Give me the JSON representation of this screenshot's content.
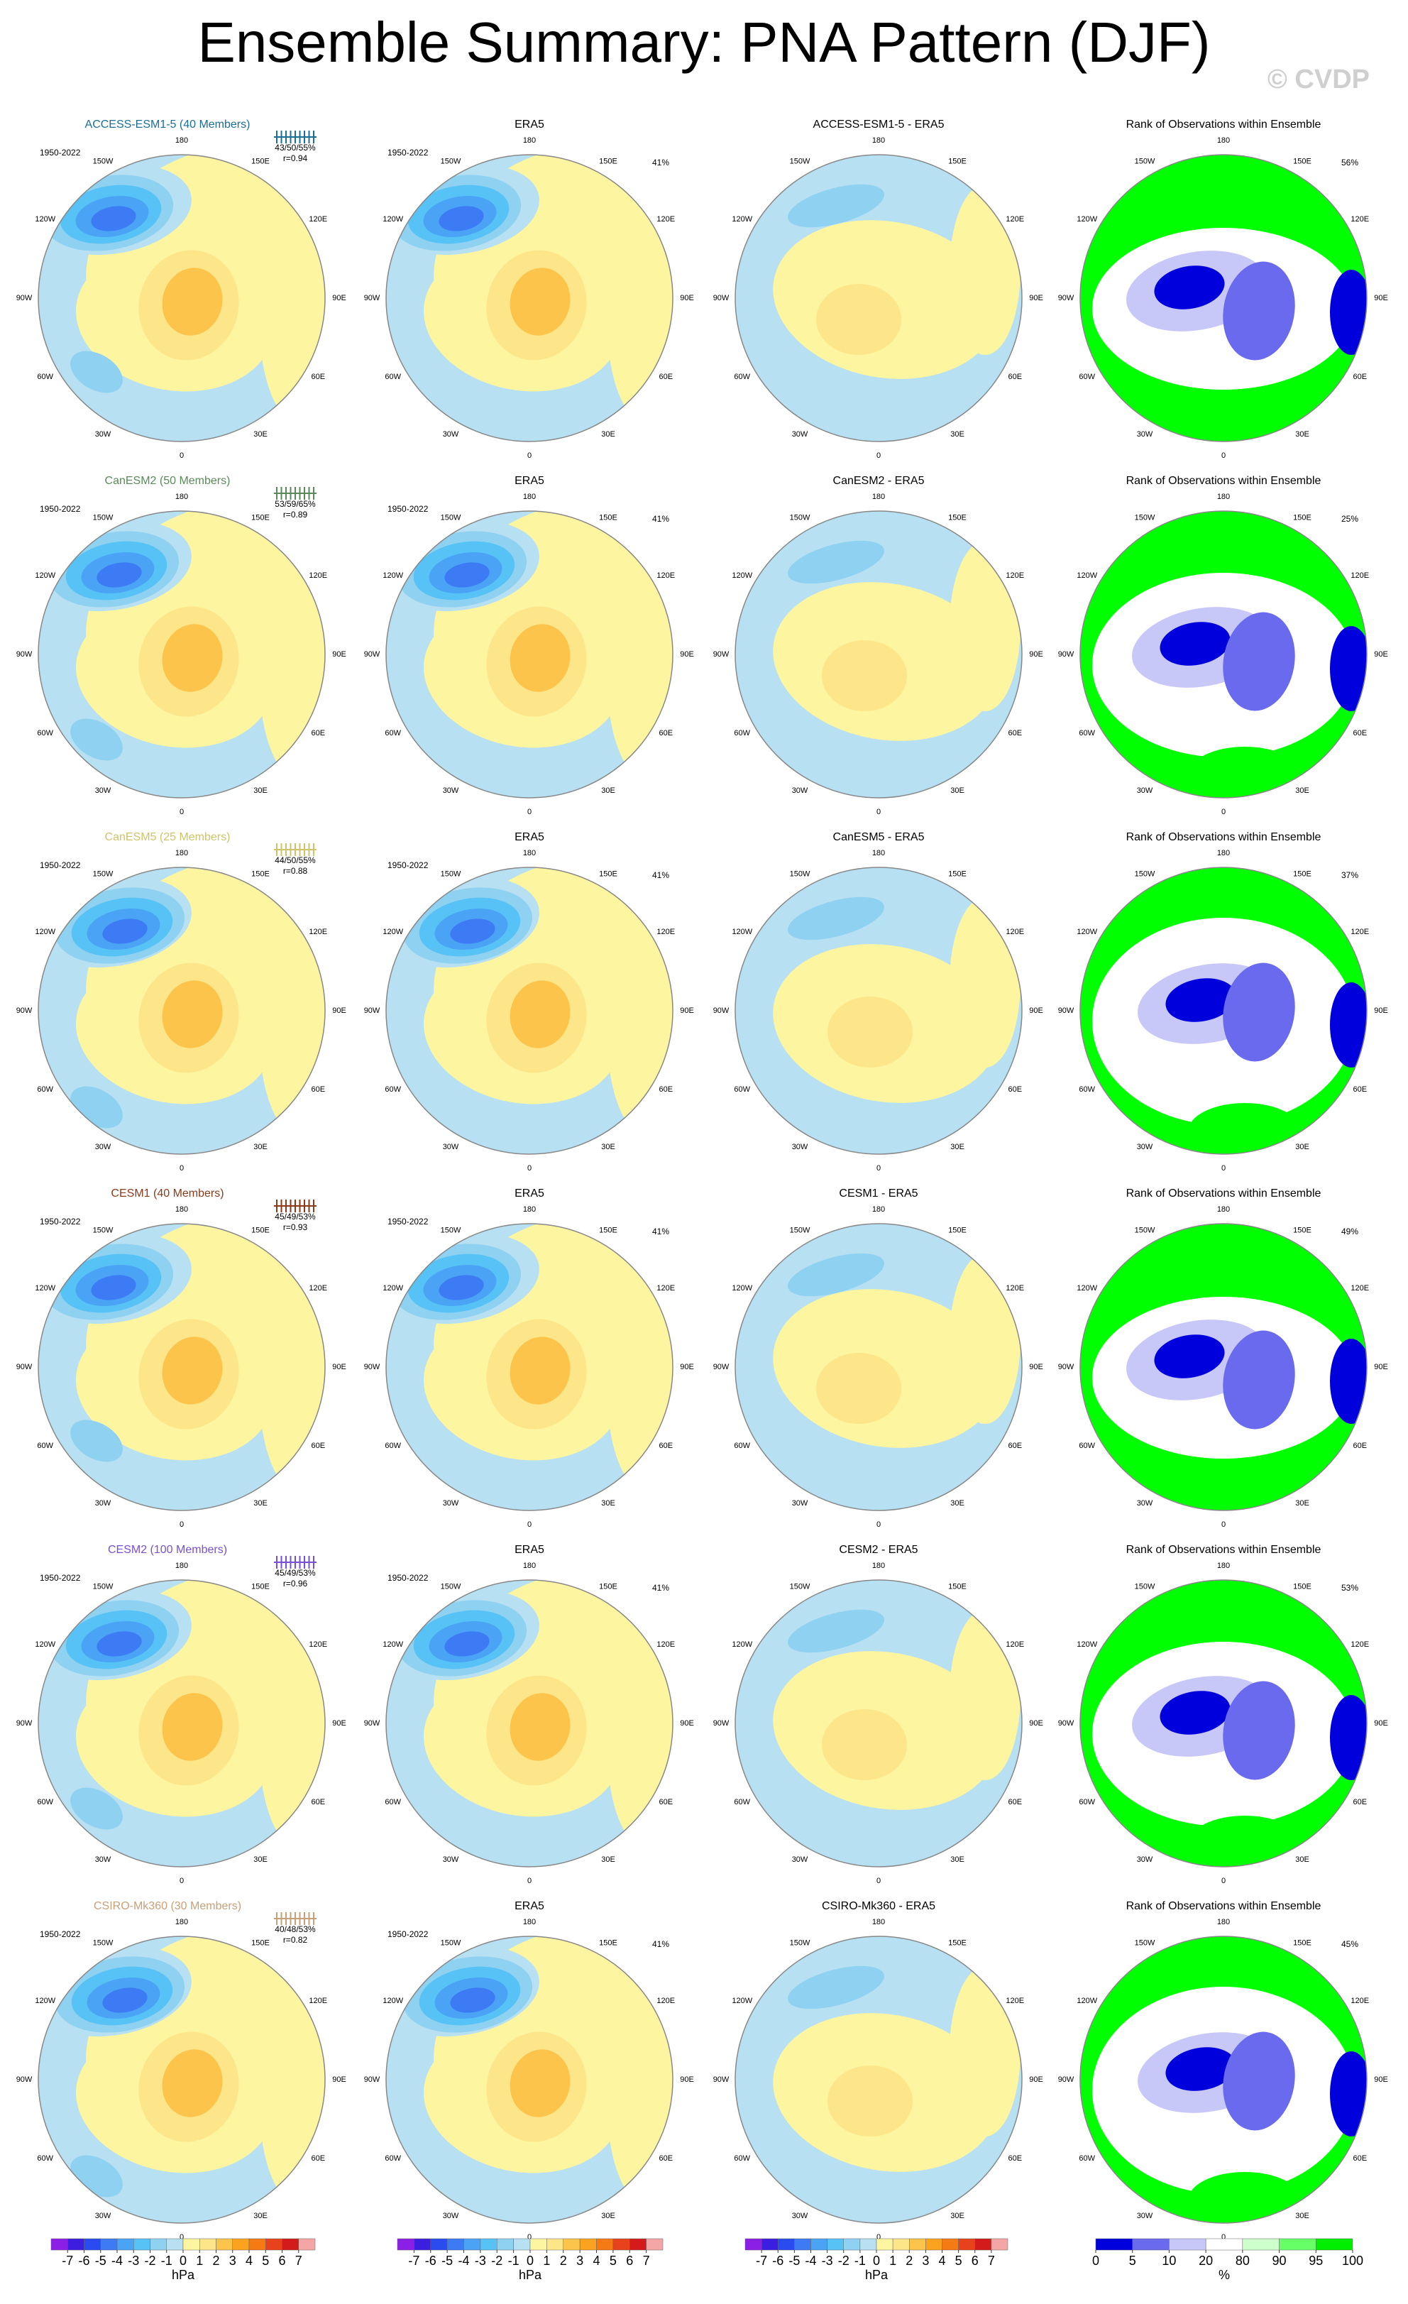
{
  "title": "Ensemble Summary: PNA Pattern (DJF)",
  "watermark": "© CVDP",
  "period": "1950-2022",
  "longitude_labels": [
    "0",
    "30E",
    "60E",
    "90E",
    "120E",
    "150E",
    "180",
    "150W",
    "120W",
    "90W",
    "60W",
    "30W"
  ],
  "observation_title": "ERA5",
  "observation_value": "41%",
  "rank_title": "Rank of Observations within Ensemble",
  "rows": [
    {
      "model": "ACCESS-ESM1-5 (40 Members)",
      "color": "#1a6f9a",
      "stats": "43/50/55%",
      "correlation": "r=0.94",
      "difference_title": "ACCESS-ESM1-5 - ERA5",
      "rank_value": "56%"
    },
    {
      "model": "CanESM2 (50 Members)",
      "color": "#5a8a5a",
      "stats": "53/59/65%",
      "correlation": "r=0.89",
      "difference_title": "CanESM2 - ERA5",
      "rank_value": "25%"
    },
    {
      "model": "CanESM5 (25 Members)",
      "color": "#cfc36a",
      "stats": "44/50/55%",
      "correlation": "r=0.88",
      "difference_title": "CanESM5 - ERA5",
      "rank_value": "37%"
    },
    {
      "model": "CESM1 (40 Members)",
      "color": "#8b3a1a",
      "stats": "45/49/53%",
      "correlation": "r=0.93",
      "difference_title": "CESM1 - ERA5",
      "rank_value": "49%"
    },
    {
      "model": "CESM2 (100 Members)",
      "color": "#7a4fd4",
      "stats": "45/49/53%",
      "correlation": "r=0.96",
      "difference_title": "CESM2 - ERA5",
      "rank_value": "53%"
    },
    {
      "model": "CSIRO-Mk360 (30 Members)",
      "color": "#c8a078",
      "stats": "40/48/53%",
      "correlation": "r=0.82",
      "difference_title": "CSIRO-Mk360 - ERA5",
      "rank_value": "45%"
    }
  ],
  "colorbar": {
    "ticks": [
      -7,
      -6,
      -5,
      -4,
      -3,
      -2,
      -1,
      0,
      1,
      2,
      3,
      4,
      5,
      6,
      7
    ],
    "colors": [
      "#8b1fe6",
      "#3c1ee0",
      "#2a4bf0",
      "#3d7bf5",
      "#4aa3f5",
      "#56c2f5",
      "#8fd1f0",
      "#b7e0f2",
      "#fdf5a0",
      "#fde58a",
      "#fcc44a",
      "#fba21f",
      "#f57a14",
      "#e8421c",
      "#d41b1b",
      "#f4a6a6"
    ],
    "unit": "hPa"
  },
  "rank_colorbar": {
    "ticks": [
      0,
      5,
      10,
      20,
      80,
      90,
      95,
      100
    ],
    "colors": [
      "#0000dd",
      "#6a6aee",
      "#c8c8f8",
      "#ffffff",
      "#ccffcc",
      "#66ff66",
      "#00ee00"
    ],
    "unit": "%"
  }
}
